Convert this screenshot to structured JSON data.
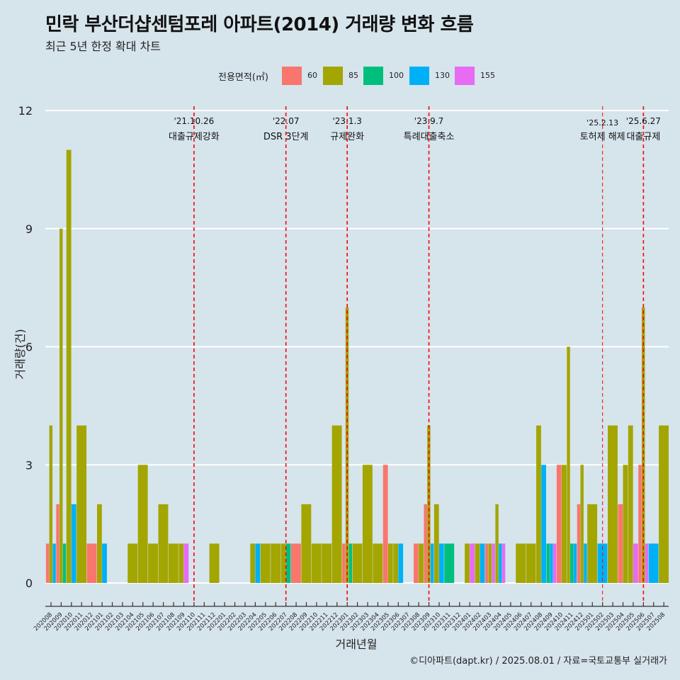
{
  "title": "민락 부산더샵센텀포레 아파트(2014) 거래량 변화 흐름",
  "subtitle": "최근 5년 한정 확대 차트",
  "caption": "©디아파트(dapt.kr) / 2025.08.01 / 자료=국토교통부 실거래가",
  "colors": {
    "background": "#d6e4ec",
    "grid": "#ffffff",
    "event_line": "#ff0000",
    "s60": "#f8766d",
    "s85": "#a3a500",
    "s100": "#00bf7d",
    "s130": "#00b0f6",
    "s155": "#e76bf3"
  },
  "chart_data": {
    "type": "bar",
    "title": "민락 부산더샵센텀포레 아파트(2014) 거래량 변화 흐름",
    "subtitle": "최근 5년 한정 확대 차트",
    "xlabel": "거래년월",
    "ylabel": "거래량(건)",
    "ylim": [
      0,
      12
    ],
    "yticks": [
      0,
      3,
      6,
      9,
      12
    ],
    "grid": true,
    "legend_position": "top",
    "legend_title": "전용면적(㎡)",
    "categories": [
      "202008",
      "202009",
      "202010",
      "202011",
      "202012",
      "202101",
      "202102",
      "202103",
      "202104",
      "202105",
      "202106",
      "202107",
      "202108",
      "202109",
      "202110",
      "202111",
      "202112",
      "202201",
      "202202",
      "202203",
      "202204",
      "202205",
      "202206",
      "202207",
      "202208",
      "202209",
      "202210",
      "202211",
      "202212",
      "202301",
      "202302",
      "202303",
      "202304",
      "202305",
      "202306",
      "202307",
      "202308",
      "202309",
      "202310",
      "202311",
      "202312",
      "202401",
      "202402",
      "202403",
      "202404",
      "202405",
      "202406",
      "202407",
      "202408",
      "202409",
      "202410",
      "202411",
      "202412",
      "202501",
      "202502",
      "202503",
      "202504",
      "202505",
      "202506",
      "202507",
      "202508"
    ],
    "series": [
      {
        "name": "60",
        "values": [
          1,
          2,
          0,
          0,
          1,
          0,
          0,
          0,
          0,
          0,
          0,
          0,
          0,
          0,
          0,
          0,
          0,
          0,
          0,
          0,
          0,
          0,
          0,
          0,
          1,
          0,
          0,
          0,
          0,
          1,
          0,
          0,
          0,
          3,
          0,
          0,
          1,
          2,
          0,
          0,
          0,
          0,
          0,
          1,
          0,
          0,
          0,
          0,
          0,
          0,
          3,
          0,
          2,
          0,
          0,
          0,
          2,
          0,
          3,
          0,
          0
        ]
      },
      {
        "name": "85",
        "values": [
          4,
          9,
          11,
          4,
          0,
          2,
          0,
          0,
          1,
          3,
          1,
          2,
          1,
          1,
          0,
          0,
          1,
          0,
          0,
          0,
          1,
          1,
          1,
          1,
          0,
          2,
          1,
          1,
          4,
          7,
          1,
          3,
          1,
          1,
          1,
          0,
          1,
          4,
          2,
          0,
          0,
          1,
          1,
          1,
          2,
          0,
          1,
          1,
          4,
          0,
          3,
          6,
          3,
          2,
          0,
          4,
          3,
          4,
          7,
          0,
          4
        ]
      },
      {
        "name": "100",
        "values": [
          0,
          1,
          0,
          0,
          0,
          0,
          0,
          0,
          0,
          0,
          0,
          0,
          0,
          0,
          0,
          0,
          0,
          0,
          0,
          0,
          0,
          0,
          0,
          1,
          0,
          0,
          0,
          0,
          0,
          1,
          0,
          0,
          0,
          0,
          0,
          0,
          0,
          0,
          0,
          1,
          0,
          0,
          0,
          0,
          0,
          0,
          0,
          0,
          0,
          1,
          0,
          1,
          0,
          0,
          0,
          0,
          0,
          0,
          0,
          0,
          0
        ]
      },
      {
        "name": "130",
        "values": [
          1,
          0,
          2,
          0,
          0,
          1,
          0,
          0,
          0,
          0,
          0,
          0,
          0,
          0,
          0,
          0,
          0,
          0,
          0,
          0,
          1,
          0,
          0,
          0,
          0,
          0,
          0,
          0,
          0,
          0,
          0,
          0,
          0,
          0,
          1,
          0,
          0,
          1,
          1,
          0,
          0,
          0,
          1,
          0,
          1,
          0,
          0,
          0,
          3,
          1,
          0,
          1,
          1,
          0,
          1,
          0,
          0,
          0,
          0,
          1,
          0
        ]
      },
      {
        "name": "155",
        "values": [
          0,
          0,
          0,
          0,
          0,
          0,
          0,
          0,
          0,
          0,
          0,
          0,
          0,
          1,
          0,
          0,
          0,
          0,
          0,
          0,
          0,
          0,
          0,
          0,
          0,
          0,
          0,
          0,
          0,
          0,
          0,
          0,
          0,
          0,
          0,
          0,
          0,
          0,
          0,
          0,
          0,
          1,
          0,
          1,
          1,
          0,
          0,
          0,
          0,
          1,
          0,
          0,
          0,
          0,
          0,
          0,
          0,
          1,
          1,
          0,
          0
        ]
      }
    ],
    "events": [
      {
        "date": "'21.10.26",
        "label": "대출규제강화",
        "at": 14.0
      },
      {
        "date": "'22.07",
        "label": "DSR 3단계",
        "at": 23.0
      },
      {
        "date": "'23.1.3",
        "label": "규제완화",
        "at": 29.0
      },
      {
        "date": "'23.9.7",
        "label": "특례대출축소",
        "at": 37.0
      },
      {
        "date": "'25.2.13",
        "label": "토허제 해제",
        "at": 54.0
      },
      {
        "date": "'25.6.27",
        "label": "대출규제",
        "at": 58.0
      }
    ]
  }
}
